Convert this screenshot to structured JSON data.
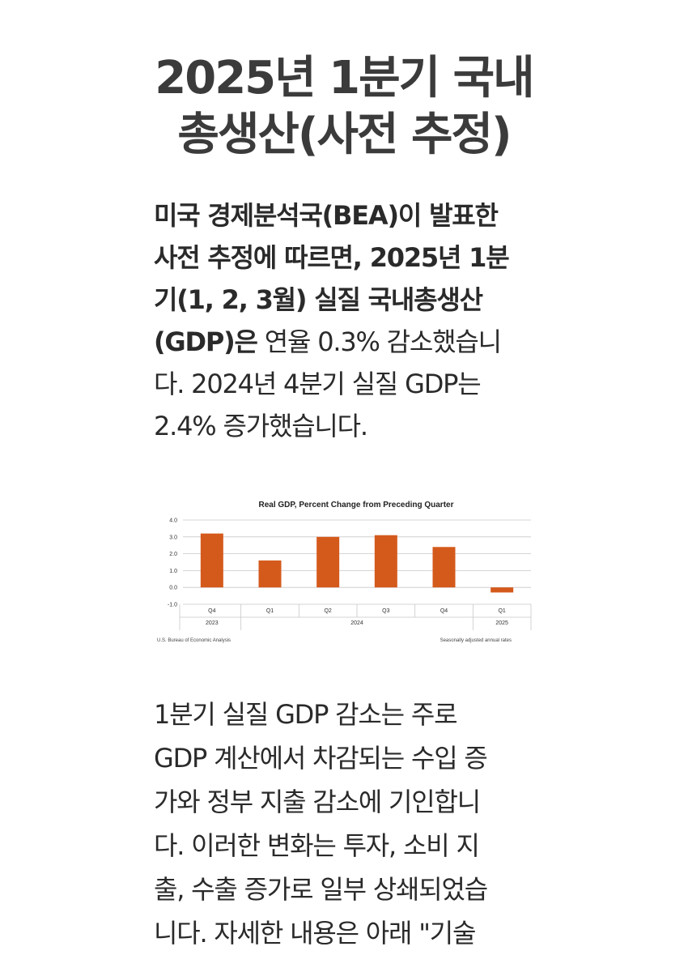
{
  "title": {
    "line1": "2025년 1분기 국내",
    "line2": "총생산(사전 추정)"
  },
  "intro": {
    "line1_bold": "미국 경제분석국(BEA)이 발표한",
    "line2_bold": "사전 추정에 따르면, 2025년 1분",
    "line3_bold": "기(1, 2, 3월) 실질 국내총생산",
    "line4_bold": "(GDP)은",
    "line4_rest": " 연율 0.3% 감소했습니",
    "line5": "다. 2024년 4분기 실질 GDP는",
    "line6": "2.4% 증가했습니다."
  },
  "chart_data": {
    "type": "bar",
    "title": "Real GDP, Percent Change from Preceding Quarter",
    "categories": [
      "Q4",
      "Q1",
      "Q2",
      "Q3",
      "Q4",
      "Q1"
    ],
    "years": [
      {
        "label": "2023",
        "span": 1
      },
      {
        "label": "2024",
        "span": 4
      },
      {
        "label": "2025",
        "span": 1
      }
    ],
    "values": [
      3.2,
      1.6,
      3.0,
      3.1,
      2.4,
      -0.3
    ],
    "ylim": [
      -1.0,
      4.0
    ],
    "yticks": [
      "4.0",
      "3.0",
      "2.0",
      "1.0",
      "0.0",
      "-1.0"
    ],
    "bar_color": "#d45a1c",
    "grid": true,
    "source": "U.S. Bureau of Economic Analysis",
    "note": "Seasonally adjusted annual rates"
  },
  "body2": {
    "line1": "1분기 실질 GDP 감소는 주로",
    "line2": "GDP 계산에서 차감되는 수입 증",
    "line3": "가와 정부 지출 감소에 기인합니",
    "line4": "다. 이러한 변화는 투자, 소비 지",
    "line5": "출, 수출 증가로 일부 상쇄되었습",
    "line6": "니다. 자세한 내용은 아래 \"기술"
  }
}
